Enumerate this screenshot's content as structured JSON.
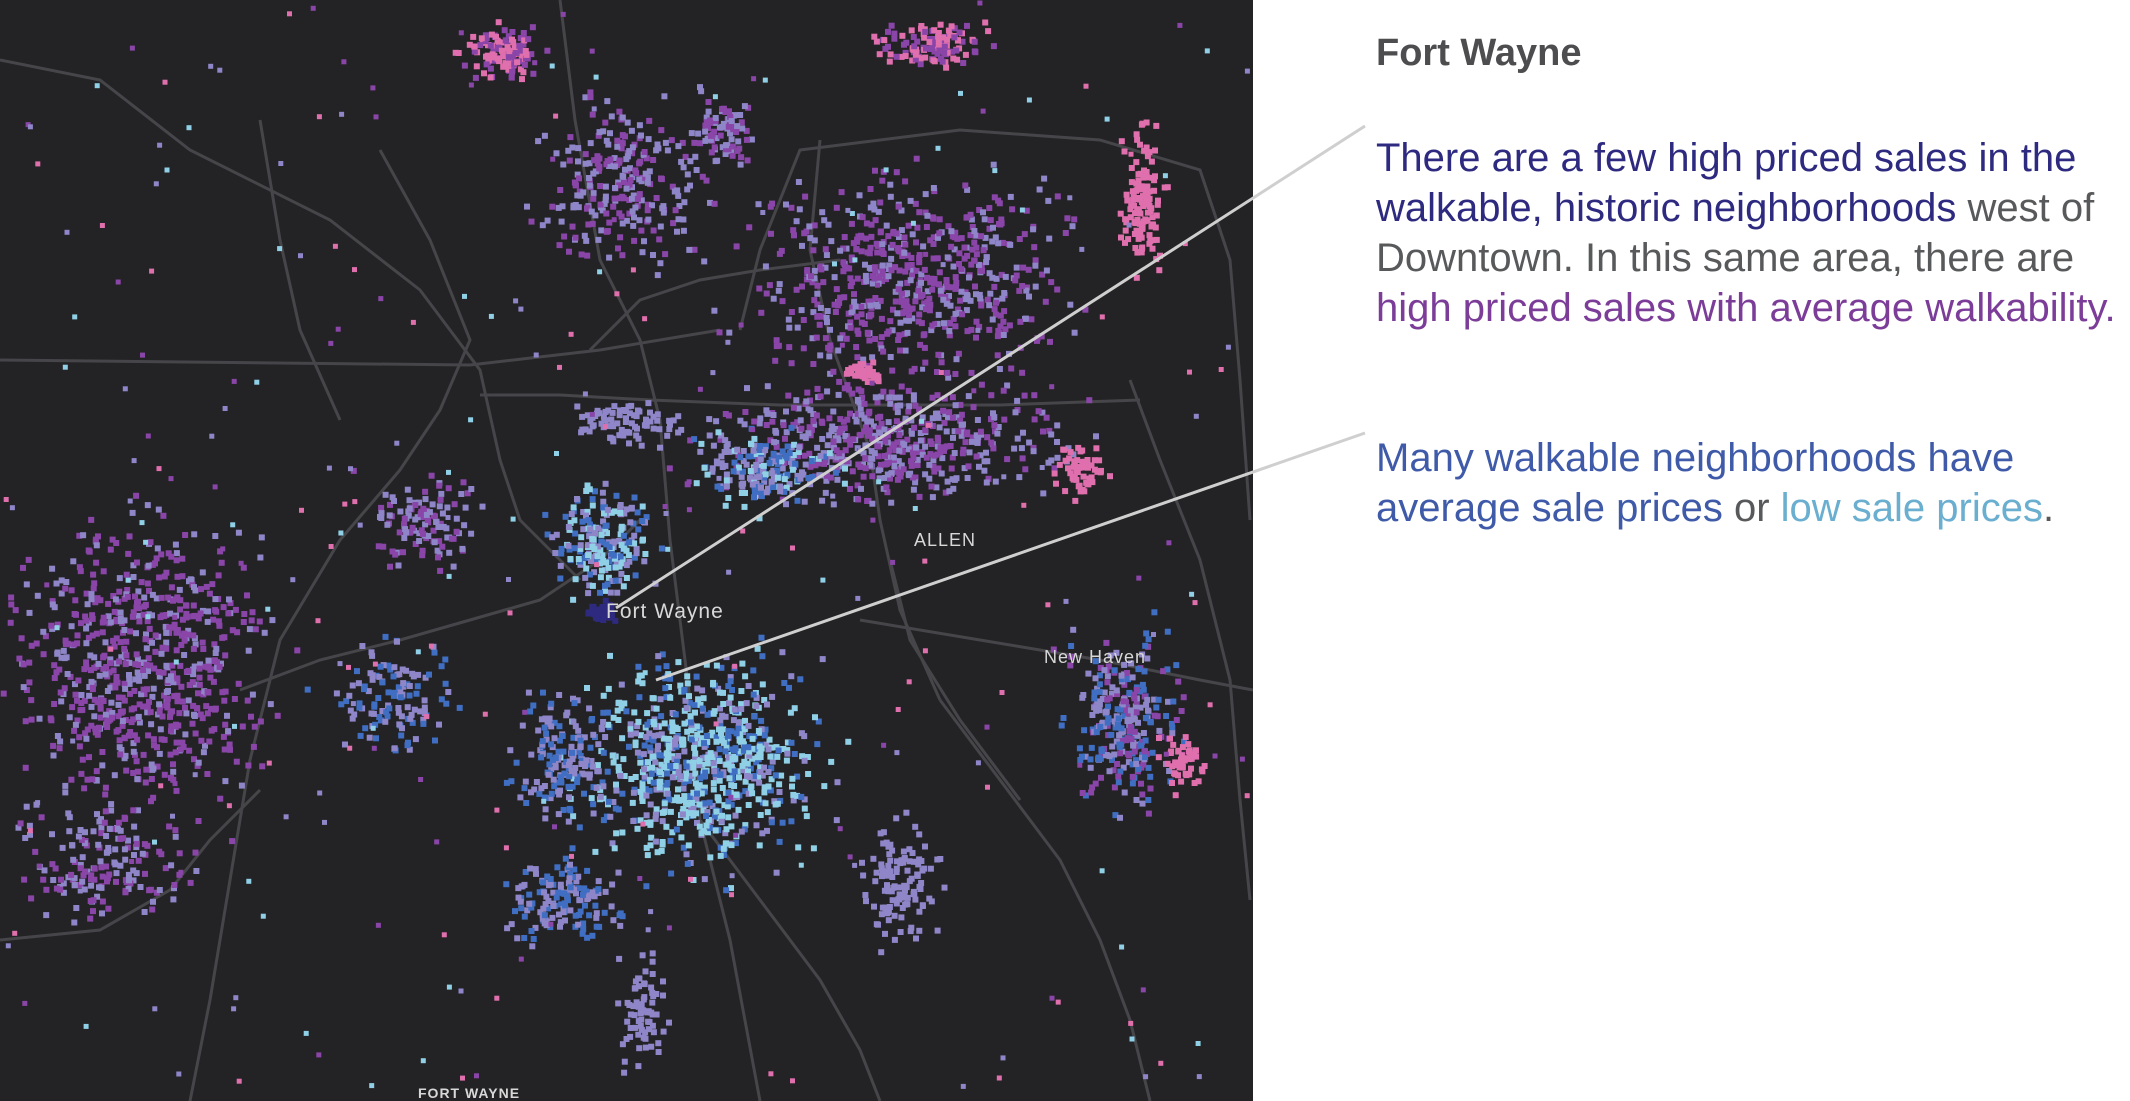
{
  "map": {
    "labels": {
      "fort_wayne": "Fort Wayne",
      "allen": "ALLEN",
      "new_haven": "New Haven",
      "fort_wayne_caps": "FORT WAYNE"
    },
    "colors": {
      "background": "#232325",
      "roads": "#46464a",
      "high_price_high_walk": "#2e2a80",
      "high_price_avg_walk": "#8a45a8",
      "avg_price_avg_walk": "#8f86c9",
      "high_price_low_walk": "#e06fae",
      "avg_price_high_walk": "#3f6ec2",
      "low_price_high_walk": "#8fd0e6",
      "leader_line": "#cfcfcf"
    }
  },
  "panel": {
    "title": "Fort Wayne",
    "note1": {
      "part1": "There are a few high priced sales in the walkable, historic neighborhoods",
      "part2": " west of Downtown. In this same area, there are ",
      "part3": "high priced sales with average walkability."
    },
    "note2": {
      "part1": "Many walkable neighborhoods have average sale prices",
      "part2": " or ",
      "part3": "low sale prices",
      "part4": "."
    }
  }
}
